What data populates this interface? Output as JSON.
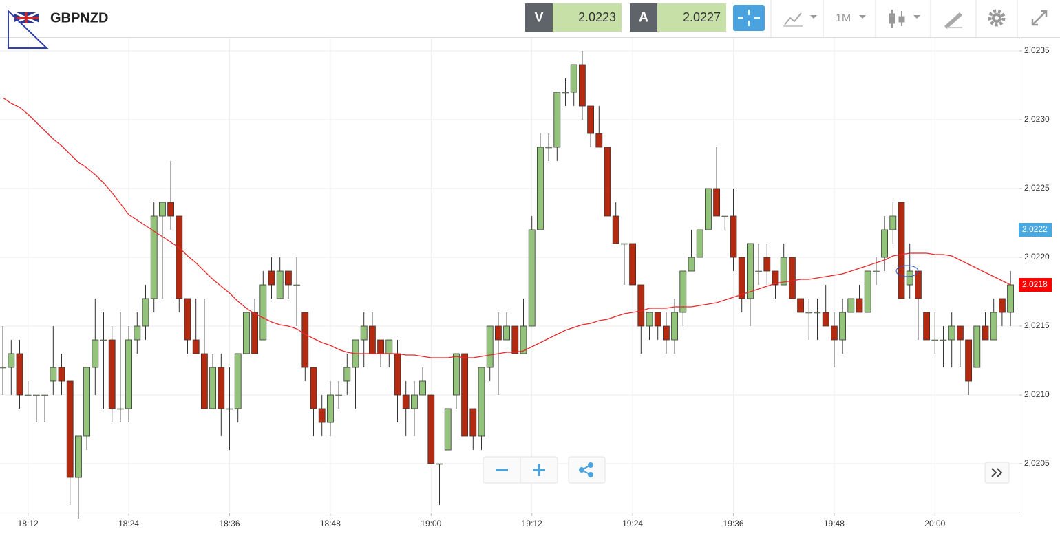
{
  "header": {
    "symbol": "GBPNZD",
    "bid": {
      "label": "V",
      "value": 2.0223
    },
    "ask": {
      "label": "A",
      "value": 2.0227
    },
    "timeframe": "1M"
  },
  "chart_data": {
    "type": "candlestick",
    "categories": [
      null,
      null,
      null,
      "18:12",
      null,
      null,
      null,
      null,
      null,
      null,
      null,
      null,
      null,
      null,
      null,
      "18:24",
      null,
      null,
      null,
      null,
      null,
      null,
      null,
      null,
      null,
      null,
      null,
      "18:36",
      null,
      null,
      null,
      null,
      null,
      null,
      null,
      null,
      null,
      null,
      null,
      "18:48",
      null,
      null,
      null,
      null,
      null,
      null,
      null,
      null,
      null,
      null,
      null,
      "19:00",
      null,
      null,
      null,
      null,
      null,
      null,
      null,
      null,
      null,
      null,
      null,
      "19:12",
      null,
      null,
      null,
      null,
      null,
      null,
      null,
      null,
      null,
      null,
      null,
      "19:24",
      null,
      null,
      null,
      null,
      null,
      null,
      null,
      null,
      null,
      null,
      null,
      "19:36",
      null,
      null,
      null,
      null,
      null,
      null,
      null,
      null,
      null,
      null,
      null,
      "19:48",
      null,
      null,
      null,
      null,
      null,
      null,
      null,
      null,
      null,
      null,
      null,
      "20:00",
      null,
      null,
      null,
      null,
      null,
      null,
      null,
      null,
      null
    ],
    "open": [
      2.0212,
      2.0212,
      2.0213,
      2.021,
      2.021,
      2.021,
      2.0211,
      2.0212,
      2.0211,
      2.0204,
      2.0207,
      2.0212,
      2.0214,
      2.0214,
      2.0209,
      2.0209,
      2.0214,
      2.0215,
      2.0217,
      2.0223,
      2.0224,
      2.0223,
      2.0217,
      2.0214,
      2.0213,
      2.0209,
      2.0212,
      2.0209,
      2.0209,
      2.0213,
      2.0216,
      2.0214,
      2.0219,
      2.0217,
      2.0219,
      2.0218,
      2.0216,
      2.0212,
      2.0209,
      2.0208,
      2.021,
      2.0211,
      2.0212,
      2.0214,
      2.0215,
      2.0214,
      2.0213,
      2.0213,
      2.021,
      2.0209,
      2.021,
      2.021,
      2.0205,
      2.0206,
      2.021,
      2.0213,
      2.0209,
      2.0207,
      2.0212,
      2.0215,
      2.0214,
      2.0215,
      2.0213,
      2.0215,
      2.0222,
      2.0228,
      2.0228,
      2.0232,
      2.0232,
      2.0234,
      2.0231,
      2.0229,
      2.0228,
      2.0223,
      2.0221,
      2.0221,
      2.0218,
      2.0215,
      2.0216,
      2.0215,
      2.0214,
      2.0216,
      2.0219,
      2.022,
      2.0222,
      2.0225,
      2.0223,
      2.0223,
      2.022,
      2.0217,
      2.0219,
      2.022,
      2.0219,
      2.0218,
      2.022,
      2.0217,
      2.0216,
      2.0216,
      2.0216,
      2.0215,
      2.0214,
      2.0216,
      2.0217,
      2.0216,
      2.0219,
      2.022,
      2.0222,
      2.0224,
      2.0218,
      2.0219,
      2.0216,
      2.0214,
      2.0214,
      2.0214,
      2.0215,
      2.0214,
      2.0212,
      2.0215,
      2.0214,
      2.0217,
      2.0216
    ],
    "high": [
      2.0215,
      2.0214,
      2.0214,
      2.0211,
      2.021,
      2.021,
      2.0215,
      2.0213,
      2.0211,
      2.0207,
      2.0212,
      2.0217,
      2.0216,
      2.0215,
      2.0216,
      2.0215,
      2.0216,
      2.0218,
      2.0224,
      2.0224,
      2.0227,
      2.0223,
      2.0217,
      2.0217,
      2.0217,
      2.0213,
      2.0213,
      2.0212,
      2.0213,
      2.0216,
      2.0217,
      2.0219,
      2.022,
      2.022,
      2.0219,
      2.022,
      2.0216,
      2.0212,
      2.021,
      2.0211,
      2.0211,
      2.0213,
      2.0214,
      2.0216,
      2.0216,
      2.0214,
      2.0214,
      2.0214,
      2.0211,
      2.0211,
      2.0212,
      2.021,
      2.0205,
      2.0209,
      2.0213,
      2.0213,
      2.0209,
      2.0212,
      2.0215,
      2.0216,
      2.0216,
      2.0215,
      2.0217,
      2.0223,
      2.0229,
      2.0229,
      2.0232,
      2.0233,
      2.0234,
      2.0235,
      2.0231,
      2.0231,
      2.0228,
      2.0224,
      2.0221,
      2.0221,
      2.0218,
      2.0216,
      2.0216,
      2.0216,
      2.0217,
      2.0219,
      2.0222,
      2.0222,
      2.0225,
      2.0228,
      2.0223,
      2.0225,
      2.022,
      2.0221,
      2.0221,
      2.0221,
      2.0219,
      2.0221,
      2.022,
      2.0217,
      2.0217,
      2.0217,
      2.0218,
      2.0216,
      2.0217,
      2.0217,
      2.0218,
      2.0219,
      2.022,
      2.0223,
      2.0224,
      2.0224,
      2.0221,
      2.0219,
      2.0216,
      2.0216,
      2.0215,
      2.0216,
      2.0215,
      2.0214,
      2.0215,
      2.0216,
      2.0217,
      2.0217,
      2.0219
    ],
    "low": [
      2.021,
      2.021,
      2.0209,
      2.021,
      2.0208,
      2.0208,
      2.021,
      2.021,
      2.0202,
      2.0201,
      2.0206,
      2.021,
      2.0209,
      2.0208,
      2.0208,
      2.0208,
      2.0213,
      2.0214,
      2.0216,
      2.0217,
      2.0222,
      2.0216,
      2.0213,
      2.0213,
      2.0209,
      2.0209,
      2.0207,
      2.0206,
      2.0208,
      2.0213,
      2.0213,
      2.0214,
      2.0217,
      2.0217,
      2.0217,
      2.0215,
      2.0211,
      2.0207,
      2.0207,
      2.0207,
      2.0209,
      2.021,
      2.0209,
      2.0212,
      2.0213,
      2.0212,
      2.0212,
      2.0208,
      2.0207,
      2.0207,
      2.021,
      2.0205,
      2.0202,
      2.0206,
      2.0209,
      2.0207,
      2.0206,
      2.0206,
      2.0211,
      2.021,
      2.0214,
      2.0213,
      2.0213,
      2.0215,
      2.0222,
      2.0227,
      2.0227,
      2.0231,
      2.0231,
      2.023,
      2.0228,
      2.0228,
      2.0223,
      2.0221,
      2.0218,
      2.0218,
      2.0213,
      2.0214,
      2.0214,
      2.0213,
      2.0213,
      2.0215,
      2.0219,
      2.022,
      2.0222,
      2.0223,
      2.0222,
      2.0219,
      2.0216,
      2.0215,
      2.0218,
      2.0218,
      2.0217,
      2.0218,
      2.0217,
      2.0216,
      2.0214,
      2.0214,
      2.0215,
      2.0212,
      2.0213,
      2.0216,
      2.0216,
      2.0216,
      2.0218,
      2.0219,
      2.0221,
      2.0217,
      2.0217,
      2.0214,
      2.0214,
      2.0213,
      2.0212,
      2.0212,
      2.0212,
      2.021,
      2.0212,
      2.0214,
      2.0214,
      2.0215,
      2.0215
    ],
    "close": [
      2.0212,
      2.0213,
      2.021,
      2.021,
      2.021,
      2.021,
      2.0212,
      2.0211,
      2.0204,
      2.0207,
      2.0212,
      2.0214,
      2.0214,
      2.0209,
      2.0209,
      2.0214,
      2.0215,
      2.0217,
      2.0223,
      2.0224,
      2.0223,
      2.0217,
      2.0214,
      2.0213,
      2.0209,
      2.0212,
      2.0209,
      2.0209,
      2.0213,
      2.0216,
      2.0213,
      2.0218,
      2.0218,
      2.0219,
      2.0218,
      2.0218,
      2.0212,
      2.0209,
      2.0208,
      2.021,
      2.021,
      2.0212,
      2.0214,
      2.0215,
      2.0213,
      2.0213,
      2.0214,
      2.021,
      2.0209,
      2.021,
      2.0211,
      2.0205,
      2.0205,
      2.0209,
      2.0213,
      2.0207,
      2.0207,
      2.0212,
      2.0215,
      2.0214,
      2.0215,
      2.0213,
      2.0215,
      2.0222,
      2.0228,
      2.0228,
      2.0232,
      2.0232,
      2.0234,
      2.0231,
      2.0229,
      2.0228,
      2.0223,
      2.0221,
      2.0221,
      2.0218,
      2.0215,
      2.0216,
      2.0215,
      2.0214,
      2.0216,
      2.0219,
      2.022,
      2.0222,
      2.0225,
      2.0223,
      2.0223,
      2.022,
      2.0217,
      2.0221,
      2.0219,
      2.0219,
      2.0218,
      2.022,
      2.0217,
      2.0216,
      2.0216,
      2.0216,
      2.0215,
      2.0214,
      2.0216,
      2.0217,
      2.0216,
      2.0219,
      2.0219,
      2.0222,
      2.0223,
      2.0217,
      2.0219,
      2.0217,
      2.0214,
      2.0214,
      2.0214,
      2.0215,
      2.0214,
      2.0211,
      2.0215,
      2.0214,
      2.0216,
      2.0216,
      2.0218
    ],
    "up_color": "#94c47c",
    "down_color": "#b32a10",
    "overlay": {
      "color": "#e8282b",
      "values": [
        2.02316,
        2.02312,
        2.02309,
        2.02304,
        2.02298,
        2.02292,
        2.02286,
        2.02281,
        2.02275,
        2.02269,
        2.02265,
        2.0226,
        2.02254,
        2.02247,
        2.02239,
        2.02231,
        2.02227,
        2.02223,
        2.02219,
        2.02215,
        2.02211,
        2.02207,
        2.02201,
        2.02196,
        2.0219,
        2.02184,
        2.02179,
        2.02174,
        2.02168,
        2.02163,
        2.02159,
        2.02156,
        2.02153,
        2.02151,
        2.0215,
        2.02148,
        2.02144,
        2.02141,
        2.02138,
        2.02136,
        2.02133,
        2.02131,
        2.0213,
        2.0213,
        2.0213,
        2.0213,
        2.0213,
        2.0213,
        2.02129,
        2.02129,
        2.02128,
        2.02127,
        2.02127,
        2.02127,
        2.02128,
        2.02127,
        2.02127,
        2.02128,
        2.02129,
        2.0213,
        2.02131,
        2.02131,
        2.02132,
        2.02135,
        2.02138,
        2.02141,
        2.02144,
        2.02147,
        2.02149,
        2.02151,
        2.02152,
        2.02154,
        2.02155,
        2.02157,
        2.02159,
        2.0216,
        2.02161,
        2.02163,
        2.02163,
        2.02163,
        2.02164,
        2.02164,
        2.02164,
        2.02165,
        2.02166,
        2.02167,
        2.02169,
        2.02171,
        2.02173,
        2.02175,
        2.02177,
        2.02179,
        2.02181,
        2.02182,
        2.02183,
        2.02184,
        2.02184,
        2.02185,
        2.02186,
        2.02187,
        2.02188,
        2.0219,
        2.02192,
        2.02194,
        2.02196,
        2.02198,
        2.02201,
        2.02202,
        2.02203,
        2.02203,
        2.02203,
        2.02202,
        2.02202,
        2.02201,
        2.02198,
        2.02195,
        2.02192,
        2.02189,
        2.02186,
        2.02183,
        2.0218
      ]
    },
    "ylim": [
      2.020145,
      2.023595
    ],
    "yticks": [
      {
        "value": 2.0205,
        "label": "2,0205"
      },
      {
        "value": 2.021,
        "label": "2,0210"
      },
      {
        "value": 2.0215,
        "label": "2,0215"
      },
      {
        "value": 2.022,
        "label": "2,0220"
      },
      {
        "value": 2.0225,
        "label": "2,0225"
      },
      {
        "value": 2.023,
        "label": "2,0230"
      },
      {
        "value": 2.0235,
        "label": "2,0235"
      }
    ],
    "price_markers": [
      {
        "value": 2.0222,
        "label": "2,0222",
        "color": "#4aa8e0"
      },
      {
        "value": 2.0218,
        "label": "2,0218",
        "color": "#ff0000"
      }
    ],
    "grid": true
  }
}
